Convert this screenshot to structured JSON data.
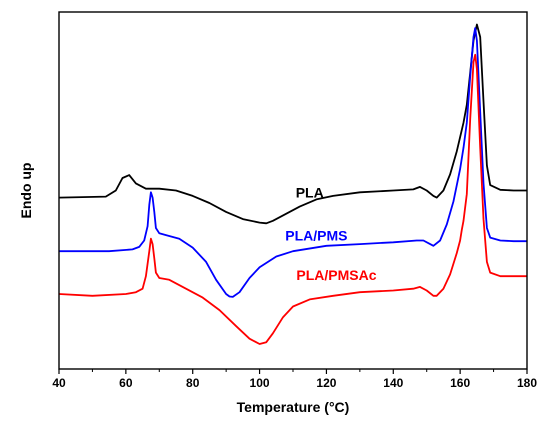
{
  "chart_data": {
    "type": "line",
    "xlabel": "Temperature (°C)",
    "ylabel": "Endo up",
    "xlim": [
      40,
      180
    ],
    "ylim": [
      0,
      100
    ],
    "x_ticks": [
      40,
      60,
      80,
      100,
      120,
      140,
      160,
      180
    ],
    "grid": false,
    "legend": "inline labels",
    "series": [
      {
        "name": "PLA",
        "color": "#000000",
        "label_at": [
          115,
          48
        ],
        "points": [
          [
            40,
            48
          ],
          [
            54,
            48.3
          ],
          [
            57,
            50
          ],
          [
            59,
            53.5
          ],
          [
            61,
            54.3
          ],
          [
            63,
            52
          ],
          [
            66,
            50.5
          ],
          [
            70,
            50.5
          ],
          [
            75,
            50
          ],
          [
            80,
            48.5
          ],
          [
            85,
            46.5
          ],
          [
            90,
            44
          ],
          [
            95,
            42
          ],
          [
            100,
            41
          ],
          [
            102,
            40.8
          ],
          [
            104,
            41.5
          ],
          [
            108,
            43.5
          ],
          [
            112,
            45.5
          ],
          [
            117,
            47.5
          ],
          [
            122,
            48.5
          ],
          [
            130,
            49.5
          ],
          [
            140,
            50
          ],
          [
            146,
            50.3
          ],
          [
            148,
            51
          ],
          [
            150,
            50
          ],
          [
            152,
            48.5
          ],
          [
            153,
            48
          ],
          [
            155,
            50
          ],
          [
            157,
            54.5
          ],
          [
            159,
            61
          ],
          [
            161,
            69
          ],
          [
            162,
            74
          ],
          [
            163,
            83
          ],
          [
            164,
            92
          ],
          [
            165,
            96.5
          ],
          [
            166,
            93
          ],
          [
            167,
            75
          ],
          [
            168,
            57
          ],
          [
            169,
            51.5
          ],
          [
            172,
            50.2
          ],
          [
            176,
            50
          ],
          [
            180,
            50
          ]
        ]
      },
      {
        "name": "PLA/PMS",
        "color": "#0000ff",
        "label_at": [
          117,
          36
        ],
        "points": [
          [
            40,
            33
          ],
          [
            55,
            33
          ],
          [
            62,
            33.5
          ],
          [
            64,
            34.2
          ],
          [
            65.5,
            36
          ],
          [
            66.5,
            40
          ],
          [
            67,
            46
          ],
          [
            67.5,
            49.5
          ],
          [
            68,
            48
          ],
          [
            68.5,
            44
          ],
          [
            69,
            39.5
          ],
          [
            70,
            38
          ],
          [
            72,
            37.5
          ],
          [
            76,
            36.5
          ],
          [
            80,
            34
          ],
          [
            84,
            30
          ],
          [
            87,
            25
          ],
          [
            90,
            21
          ],
          [
            91,
            20.3
          ],
          [
            92,
            20.2
          ],
          [
            94,
            21.5
          ],
          [
            97,
            25.5
          ],
          [
            100,
            28.5
          ],
          [
            105,
            31.5
          ],
          [
            110,
            33
          ],
          [
            120,
            34.5
          ],
          [
            130,
            35
          ],
          [
            140,
            35.5
          ],
          [
            147,
            36
          ],
          [
            149,
            36
          ],
          [
            151,
            35
          ],
          [
            152,
            34.5
          ],
          [
            154,
            36
          ],
          [
            156,
            40.5
          ],
          [
            158,
            47
          ],
          [
            160,
            56
          ],
          [
            161,
            62
          ],
          [
            162,
            69
          ],
          [
            163,
            82
          ],
          [
            164,
            93
          ],
          [
            164.5,
            95.5
          ],
          [
            165,
            92
          ],
          [
            166,
            72
          ],
          [
            167,
            52
          ],
          [
            168,
            39.5
          ],
          [
            169,
            36.8
          ],
          [
            172,
            36
          ],
          [
            176,
            35.8
          ],
          [
            180,
            35.8
          ]
        ]
      },
      {
        "name": "PLA/PMSAc",
        "color": "#ff0000",
        "label_at": [
          123,
          25
        ],
        "points": [
          [
            40,
            21
          ],
          [
            50,
            20.5
          ],
          [
            60,
            21
          ],
          [
            63,
            21.5
          ],
          [
            65,
            22.5
          ],
          [
            66,
            26
          ],
          [
            67,
            33
          ],
          [
            67.5,
            36.5
          ],
          [
            68,
            35
          ],
          [
            68.5,
            31
          ],
          [
            69,
            27
          ],
          [
            70,
            25.5
          ],
          [
            73,
            25
          ],
          [
            78,
            22.5
          ],
          [
            83,
            20
          ],
          [
            88,
            16.5
          ],
          [
            93,
            12
          ],
          [
            97,
            8.5
          ],
          [
            100,
            7
          ],
          [
            102,
            7.5
          ],
          [
            104,
            10
          ],
          [
            107,
            14.5
          ],
          [
            110,
            17.5
          ],
          [
            115,
            19.5
          ],
          [
            122,
            20.5
          ],
          [
            130,
            21.5
          ],
          [
            140,
            22
          ],
          [
            146,
            22.5
          ],
          [
            148,
            23
          ],
          [
            150,
            22
          ],
          [
            152,
            20.5
          ],
          [
            153,
            20.5
          ],
          [
            155,
            22.5
          ],
          [
            157,
            26.5
          ],
          [
            159,
            32.5
          ],
          [
            160,
            36
          ],
          [
            160.5,
            39
          ],
          [
            161,
            41.5
          ],
          [
            162,
            49
          ],
          [
            163,
            70
          ],
          [
            164,
            86
          ],
          [
            164.5,
            88
          ],
          [
            165,
            84
          ],
          [
            166,
            62
          ],
          [
            167,
            42
          ],
          [
            168,
            30
          ],
          [
            169,
            27
          ],
          [
            172,
            26
          ],
          [
            176,
            26
          ],
          [
            180,
            26
          ]
        ]
      }
    ]
  }
}
